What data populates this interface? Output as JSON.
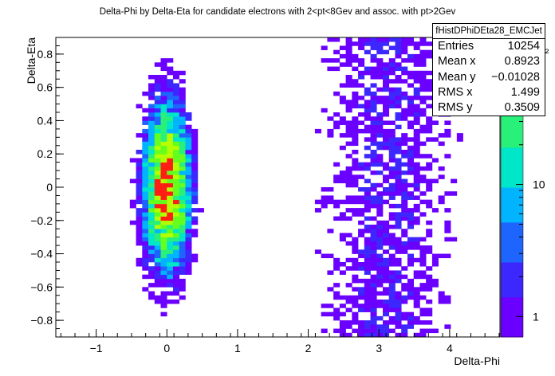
{
  "title": "Delta-Phi by Delta-Eta for candidate electrons with 2<pt<8Gev and assoc. with pt>2Gev",
  "stats": {
    "name": "fHistDPhiDEta28_EMCJet",
    "rows": [
      {
        "label": "Entries",
        "value": "10254"
      },
      {
        "label": "Mean x",
        "value": "0.8923"
      },
      {
        "label": "Mean y",
        "value": "−0.01028"
      },
      {
        "label": "RMS x",
        "value": "1.499"
      },
      {
        "label": "RMS y",
        "value": "0.3509"
      }
    ]
  },
  "colors": {
    "palette": [
      "#6a00ff",
      "#3c28ff",
      "#1e64ff",
      "#00b4ff",
      "#00e6c8",
      "#28f078",
      "#64ff1e",
      "#b4ff00"
    ],
    "peak": "#ff1e14"
  },
  "chart_data": {
    "type": "heatmap",
    "title": "Delta-Phi by Delta-Eta for candidate electrons with 2<pt<8Gev and assoc. with pt>2Gev",
    "xlabel": "Delta-Phi",
    "ylabel": "Delta-Eta",
    "xlim": [
      -1.571,
      4.712
    ],
    "ylim": [
      -0.9,
      0.9
    ],
    "x_ticks": [
      -1,
      0,
      1,
      2,
      3,
      4
    ],
    "x_tick_labels": [
      "−1",
      "0",
      "1",
      "2",
      "3",
      "4"
    ],
    "y_ticks": [
      -0.8,
      -0.6,
      -0.4,
      -0.2,
      0,
      0.2,
      0.4,
      0.6,
      0.8
    ],
    "y_tick_labels": [
      "−0.8",
      "−0.6",
      "−0.4",
      "−0.2",
      "0",
      "0.2",
      "0.4",
      "0.6",
      "0.8"
    ],
    "z_scale": "log",
    "z_range": [
      0.7,
      130
    ],
    "z_ticks": [
      1,
      10,
      100
    ],
    "z_tick_labels": [
      "1",
      "10",
      "10²"
    ],
    "bins_x": 72,
    "bins_y": 72,
    "near_side_peak": {
      "x": 0.0,
      "y": 0.0,
      "max_count": 120
    },
    "away_side_ridge": {
      "x": 3.14
    }
  }
}
